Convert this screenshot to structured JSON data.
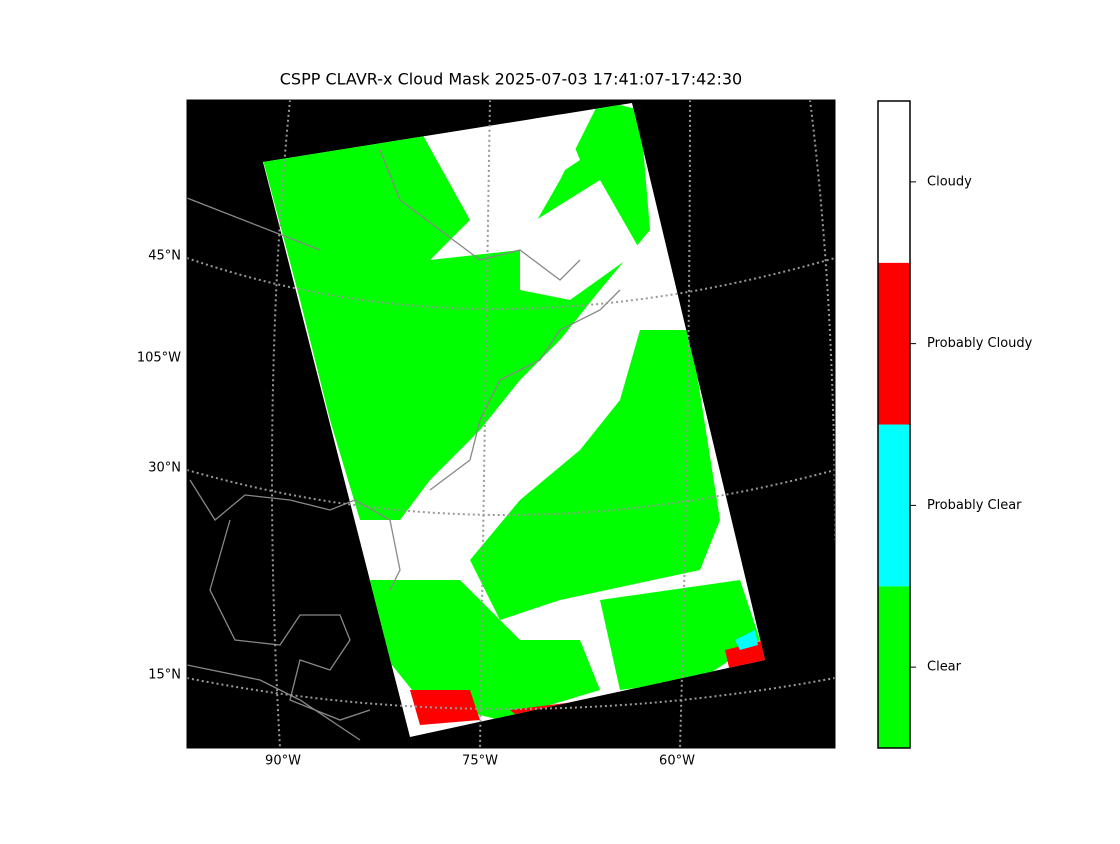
{
  "title": "CSPP CLAVR-x Cloud Mask 2025-07-03 17:41:07-17:42:30",
  "lat_labels": [
    "45°N",
    "105°W",
    "30°N",
    "15°N"
  ],
  "lon_labels": [
    "90°W",
    "75°W",
    "60°W"
  ],
  "colorbar": {
    "classes": [
      {
        "name": "Clear",
        "color": "#00ff00"
      },
      {
        "name": "Probably Clear",
        "color": "#00ffff"
      },
      {
        "name": "Probably Cloudy",
        "color": "#ff0000"
      },
      {
        "name": "Cloudy",
        "color": "#ffffff"
      }
    ]
  }
}
